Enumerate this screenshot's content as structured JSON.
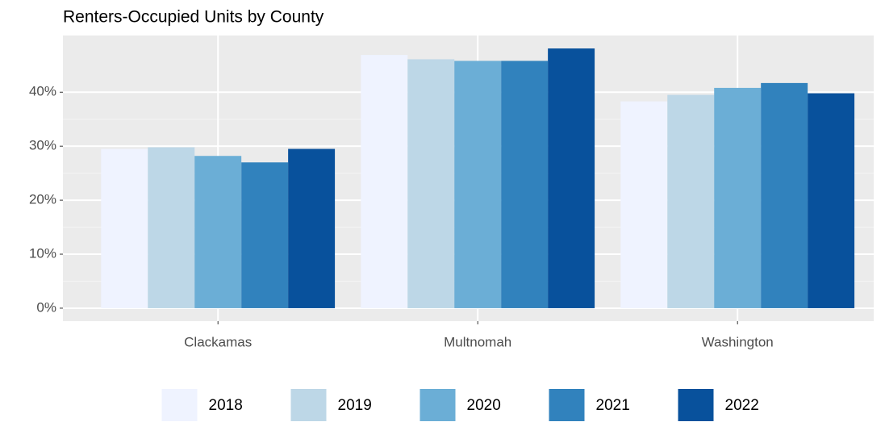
{
  "chart_data": {
    "type": "bar",
    "title": "Renters-Occupied Units by County",
    "categories": [
      "Clackamas",
      "Multnomah",
      "Washington"
    ],
    "series": [
      {
        "name": "2018",
        "color": "#eff3ff",
        "values": [
          29.5,
          46.9,
          38.3
        ]
      },
      {
        "name": "2019",
        "color": "#bdd7e7",
        "values": [
          29.8,
          46.1,
          39.5
        ]
      },
      {
        "name": "2020",
        "color": "#6baed6",
        "values": [
          28.2,
          45.8,
          40.8
        ]
      },
      {
        "name": "2021",
        "color": "#3182bd",
        "values": [
          27.0,
          45.8,
          41.7
        ]
      },
      {
        "name": "2022",
        "color": "#08519c",
        "values": [
          29.5,
          48.1,
          39.8
        ]
      }
    ],
    "ylim": [
      -2.4,
      50.5
    ],
    "yticks": [
      {
        "value": 0,
        "label": "0%"
      },
      {
        "value": 10,
        "label": "10%"
      },
      {
        "value": 20,
        "label": "20%"
      },
      {
        "value": 30,
        "label": "30%"
      },
      {
        "value": 40,
        "label": "40%"
      }
    ],
    "grid": true,
    "legend": "bottom"
  }
}
